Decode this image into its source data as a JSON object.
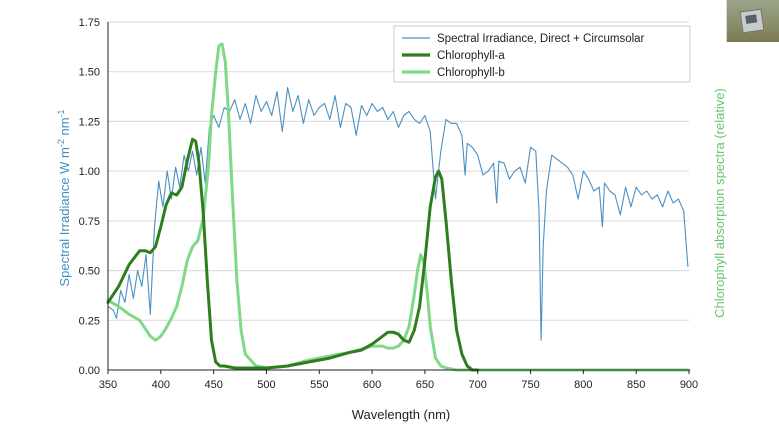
{
  "chart_data": {
    "type": "line",
    "xlabel": "Wavelength (nm)",
    "ylabel": "Spectral Irradiance W m-2 nm-1",
    "ylabel_parts": {
      "a": "Spectral Irradiance W m",
      "b": "-2",
      "c": " nm",
      "d": "-1"
    },
    "y2label": "Chlorophyll absorption spectra (relative)",
    "xlim": [
      350,
      900
    ],
    "ylim": [
      0,
      1.75
    ],
    "xticks": [
      "350",
      "400",
      "450",
      "500",
      "550",
      "600",
      "650",
      "700",
      "750",
      "800",
      "850",
      "900"
    ],
    "yticks": [
      "0.00",
      "0.25",
      "0.50",
      "0.75",
      "1.00",
      "1.25",
      "1.50",
      "1.75"
    ],
    "grid": true,
    "legend_position": "top-right",
    "series": [
      {
        "name": "Spectral Irradiance, Direct + Circumsolar",
        "color": "#4a90c4",
        "x": [
          350,
          355,
          358,
          362,
          366,
          370,
          374,
          378,
          382,
          386,
          390,
          394,
          398,
          402,
          406,
          410,
          414,
          418,
          422,
          426,
          430,
          434,
          438,
          442,
          446,
          450,
          455,
          460,
          465,
          470,
          475,
          480,
          485,
          490,
          495,
          500,
          505,
          510,
          515,
          520,
          525,
          530,
          535,
          540,
          545,
          550,
          555,
          560,
          565,
          570,
          575,
          580,
          585,
          590,
          595,
          600,
          605,
          610,
          615,
          620,
          625,
          630,
          635,
          640,
          645,
          650,
          655,
          660,
          665,
          670,
          675,
          680,
          685,
          688,
          690,
          695,
          700,
          705,
          710,
          715,
          718,
          720,
          725,
          730,
          735,
          740,
          745,
          750,
          755,
          758,
          760,
          762,
          765,
          770,
          775,
          780,
          785,
          790,
          795,
          800,
          805,
          810,
          815,
          818,
          820,
          825,
          830,
          835,
          840,
          845,
          850,
          855,
          860,
          865,
          870,
          875,
          880,
          885,
          890,
          895,
          899
        ],
        "values": [
          0.32,
          0.3,
          0.26,
          0.4,
          0.34,
          0.48,
          0.36,
          0.5,
          0.42,
          0.58,
          0.28,
          0.72,
          0.95,
          0.82,
          1.0,
          0.86,
          1.02,
          0.92,
          1.08,
          1.0,
          1.1,
          0.98,
          1.12,
          0.94,
          1.22,
          1.28,
          1.22,
          1.32,
          1.3,
          1.36,
          1.26,
          1.34,
          1.24,
          1.38,
          1.3,
          1.35,
          1.28,
          1.4,
          1.2,
          1.42,
          1.3,
          1.38,
          1.24,
          1.36,
          1.28,
          1.32,
          1.34,
          1.26,
          1.38,
          1.22,
          1.34,
          1.32,
          1.18,
          1.33,
          1.28,
          1.34,
          1.3,
          1.32,
          1.26,
          1.3,
          1.22,
          1.28,
          1.3,
          1.26,
          1.24,
          1.28,
          1.2,
          0.86,
          1.1,
          1.26,
          1.24,
          1.24,
          1.18,
          0.98,
          1.14,
          1.12,
          1.08,
          0.98,
          1.0,
          1.04,
          0.84,
          1.05,
          1.04,
          0.96,
          1.0,
          1.02,
          0.94,
          1.12,
          1.1,
          0.8,
          0.15,
          0.62,
          0.9,
          1.08,
          1.06,
          1.04,
          1.02,
          0.98,
          0.86,
          1.0,
          0.96,
          0.9,
          0.92,
          0.72,
          0.94,
          0.9,
          0.88,
          0.78,
          0.92,
          0.82,
          0.92,
          0.88,
          0.9,
          0.86,
          0.88,
          0.82,
          0.9,
          0.84,
          0.86,
          0.8,
          0.52
        ]
      },
      {
        "name": "Chlorophyll-a",
        "color": "#2e7d1f",
        "x": [
          350,
          360,
          370,
          380,
          385,
          390,
          395,
          400,
          405,
          410,
          415,
          420,
          425,
          430,
          433,
          436,
          440,
          444,
          448,
          452,
          456,
          460,
          470,
          480,
          500,
          520,
          540,
          560,
          580,
          590,
          600,
          610,
          615,
          620,
          625,
          630,
          635,
          640,
          645,
          650,
          655,
          660,
          663,
          666,
          670,
          675,
          680,
          685,
          690,
          695,
          700
        ],
        "values": [
          0.34,
          0.42,
          0.53,
          0.6,
          0.6,
          0.59,
          0.62,
          0.72,
          0.83,
          0.89,
          0.88,
          0.92,
          1.05,
          1.16,
          1.15,
          1.05,
          0.8,
          0.45,
          0.15,
          0.04,
          0.02,
          0.02,
          0.01,
          0.01,
          0.01,
          0.02,
          0.04,
          0.06,
          0.09,
          0.1,
          0.13,
          0.17,
          0.19,
          0.19,
          0.18,
          0.15,
          0.14,
          0.2,
          0.32,
          0.55,
          0.82,
          0.97,
          1.0,
          0.96,
          0.75,
          0.45,
          0.2,
          0.08,
          0.02,
          0.0,
          0.0
        ]
      },
      {
        "name": "Chlorophyll-b",
        "color": "#7fd987",
        "x": [
          350,
          360,
          370,
          380,
          390,
          395,
          400,
          405,
          410,
          415,
          420,
          425,
          430,
          435,
          440,
          445,
          448,
          452,
          455,
          458,
          461,
          464,
          468,
          472,
          476,
          480,
          490,
          500,
          520,
          540,
          560,
          580,
          600,
          610,
          615,
          620,
          625,
          630,
          635,
          640,
          643,
          646,
          649,
          652,
          655,
          660,
          665,
          670,
          680,
          700,
          750,
          800,
          900
        ],
        "values": [
          0.35,
          0.32,
          0.28,
          0.25,
          0.17,
          0.15,
          0.17,
          0.21,
          0.26,
          0.32,
          0.42,
          0.55,
          0.62,
          0.65,
          0.76,
          1.02,
          1.28,
          1.5,
          1.63,
          1.64,
          1.55,
          1.3,
          0.85,
          0.45,
          0.2,
          0.08,
          0.02,
          0.01,
          0.02,
          0.05,
          0.07,
          0.09,
          0.12,
          0.12,
          0.11,
          0.11,
          0.12,
          0.15,
          0.22,
          0.38,
          0.5,
          0.58,
          0.54,
          0.4,
          0.22,
          0.06,
          0.02,
          0.01,
          0.0,
          0.0,
          0.0,
          0.0,
          0.0
        ]
      }
    ]
  }
}
